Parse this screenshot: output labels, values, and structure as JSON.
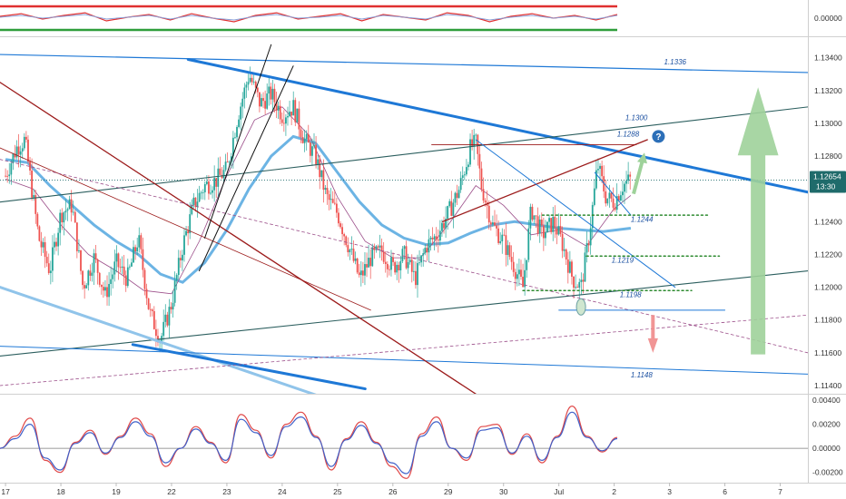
{
  "colors": {
    "background": "#ffffff",
    "candle_up": "#26a69a",
    "candle_down": "#ef5350",
    "ma_fast": "#9c4f8a",
    "ma_slow": "#6cb4e4",
    "channel_blue": "#1e78d6",
    "channel_light": "#90c4ea",
    "trend_red": "#9c1b1b",
    "trend_green": "#2b5e5e",
    "rsi_band_red": "#e03030",
    "rsi_band_green": "#2e9e3a",
    "level_green": "#2e8b30",
    "price_badge": "#1f6b6b",
    "arrow_green": "#9ed29a",
    "arrow_red": "#f08a8a",
    "question_badge": "#2c6fb8"
  },
  "chart_data": [
    {
      "type": "candlestick",
      "panel": "main",
      "price_axis": {
        "ticks": [
          "1.13400",
          "1.13200",
          "1.13000",
          "1.12800",
          "1.12600",
          "1.12400",
          "1.12200",
          "1.12000",
          "1.11800",
          "1.11600",
          "1.11400"
        ],
        "ylim": [
          1.1135,
          1.1352
        ]
      },
      "current_price": {
        "value": "1.12654",
        "timer": "13:30",
        "y": 1.12654
      },
      "x_axis": {
        "ticks": [
          {
            "label": "17",
            "x": 0
          },
          {
            "label": "18",
            "x": 1
          },
          {
            "label": "19",
            "x": 2
          },
          {
            "label": "22",
            "x": 3
          },
          {
            "label": "23",
            "x": 4
          },
          {
            "label": "24",
            "x": 5
          },
          {
            "label": "25",
            "x": 6
          },
          {
            "label": "26",
            "x": 7
          },
          {
            "label": "29",
            "x": 8
          },
          {
            "label": "30",
            "x": 9
          },
          {
            "label": "Jul",
            "x": 10
          },
          {
            "label": "2",
            "x": 11
          },
          {
            "label": "3",
            "x": 12
          },
          {
            "label": "6",
            "x": 13
          },
          {
            "label": "7",
            "x": 14
          }
        ],
        "xlim": [
          -0.1,
          14.5
        ]
      },
      "price_path": [
        [
          0,
          1.1268
        ],
        [
          0.2,
          1.1285
        ],
        [
          0.35,
          1.129
        ],
        [
          0.6,
          1.123
        ],
        [
          0.8,
          1.121
        ],
        [
          1.0,
          1.1245
        ],
        [
          1.2,
          1.125
        ],
        [
          1.4,
          1.12
        ],
        [
          1.6,
          1.1218
        ],
        [
          1.8,
          1.1195
        ],
        [
          2.0,
          1.1215
        ],
        [
          2.2,
          1.1205
        ],
        [
          2.4,
          1.123
        ],
        [
          2.6,
          1.1185
        ],
        [
          2.8,
          1.1168
        ],
        [
          3.0,
          1.119
        ],
        [
          3.2,
          1.1225
        ],
        [
          3.4,
          1.125
        ],
        [
          3.6,
          1.1262
        ],
        [
          3.8,
          1.1265
        ],
        [
          4.0,
          1.1272
        ],
        [
          4.2,
          1.1305
        ],
        [
          4.4,
          1.133
        ],
        [
          4.6,
          1.1312
        ],
        [
          4.8,
          1.1318
        ],
        [
          5.0,
          1.1305
        ],
        [
          5.2,
          1.131
        ],
        [
          5.4,
          1.129
        ],
        [
          5.6,
          1.128
        ],
        [
          5.8,
          1.1255
        ],
        [
          6.0,
          1.1245
        ],
        [
          6.2,
          1.1225
        ],
        [
          6.4,
          1.1205
        ],
        [
          6.6,
          1.1218
        ],
        [
          6.8,
          1.1222
        ],
        [
          7.0,
          1.1212
        ],
        [
          7.2,
          1.122
        ],
        [
          7.4,
          1.1205
        ],
        [
          7.6,
          1.1225
        ],
        [
          7.8,
          1.1232
        ],
        [
          8.0,
          1.1245
        ],
        [
          8.2,
          1.126
        ],
        [
          8.4,
          1.1285
        ],
        [
          8.5,
          1.1288
        ],
        [
          8.6,
          1.1262
        ],
        [
          8.8,
          1.1238
        ],
        [
          9.0,
          1.1228
        ],
        [
          9.2,
          1.1212
        ],
        [
          9.35,
          1.12
        ],
        [
          9.5,
          1.1248
        ],
        [
          9.7,
          1.1232
        ],
        [
          9.9,
          1.124
        ],
        [
          10.05,
          1.1228
        ],
        [
          10.25,
          1.1205
        ],
        [
          10.4,
          1.12
        ],
        [
          10.55,
          1.1232
        ],
        [
          10.7,
          1.1275
        ],
        [
          10.85,
          1.1255
        ],
        [
          11.0,
          1.1252
        ],
        [
          11.15,
          1.1262
        ],
        [
          11.3,
          1.1266
        ]
      ],
      "indicators": {
        "ma_fast_path": [
          [
            0,
            1.1266
          ],
          [
            0.5,
            1.126
          ],
          [
            1.0,
            1.1238
          ],
          [
            1.5,
            1.122
          ],
          [
            2.0,
            1.121
          ],
          [
            2.5,
            1.1198
          ],
          [
            3.0,
            1.1196
          ],
          [
            3.5,
            1.1228
          ],
          [
            4.0,
            1.1268
          ],
          [
            4.5,
            1.1302
          ],
          [
            5.0,
            1.131
          ],
          [
            5.5,
            1.1292
          ],
          [
            6.0,
            1.1255
          ],
          [
            6.5,
            1.1228
          ],
          [
            7.0,
            1.1218
          ],
          [
            7.5,
            1.1218
          ],
          [
            8.0,
            1.1238
          ],
          [
            8.5,
            1.1262
          ],
          [
            9.0,
            1.125
          ],
          [
            9.5,
            1.1232
          ],
          [
            10.0,
            1.1235
          ],
          [
            10.5,
            1.1225
          ],
          [
            11.0,
            1.1248
          ],
          [
            11.3,
            1.1256
          ]
        ],
        "ma_slow_path": [
          [
            0,
            1.1278
          ],
          [
            0.4,
            1.1276
          ],
          [
            0.8,
            1.1262
          ],
          [
            1.2,
            1.125
          ],
          [
            1.6,
            1.1238
          ],
          [
            2.0,
            1.1228
          ],
          [
            2.4,
            1.122
          ],
          [
            2.8,
            1.1208
          ],
          [
            3.2,
            1.1203
          ],
          [
            3.6,
            1.1215
          ],
          [
            4.0,
            1.1235
          ],
          [
            4.4,
            1.126
          ],
          [
            4.8,
            1.128
          ],
          [
            5.2,
            1.1292
          ],
          [
            5.6,
            1.1288
          ],
          [
            6.0,
            1.127
          ],
          [
            6.4,
            1.1252
          ],
          [
            6.8,
            1.1238
          ],
          [
            7.2,
            1.123
          ],
          [
            7.6,
            1.1226
          ],
          [
            8.0,
            1.1227
          ],
          [
            8.4,
            1.1233
          ],
          [
            8.8,
            1.1238
          ],
          [
            9.2,
            1.124
          ],
          [
            9.6,
            1.1238
          ],
          [
            10.0,
            1.1236
          ],
          [
            10.4,
            1.1235
          ],
          [
            10.8,
            1.1234
          ],
          [
            11.3,
            1.1236
          ]
        ]
      },
      "drawings": [
        {
          "kind": "line",
          "color": "channel_blue",
          "width": 1.2,
          "from": [
            -0.1,
            1.1342
          ],
          "to": [
            14.5,
            1.1331
          ]
        },
        {
          "kind": "line",
          "color": "channel_blue",
          "width": 3,
          "from": [
            3.3,
            1.1339
          ],
          "to": [
            14.5,
            1.1258
          ]
        },
        {
          "kind": "line",
          "color": "trend_green",
          "width": 1.1,
          "from": [
            -0.1,
            1.1252
          ],
          "to": [
            14.5,
            1.131
          ]
        },
        {
          "kind": "line",
          "color": "trend_green",
          "width": 1.1,
          "from": [
            -0.1,
            1.1158
          ],
          "to": [
            14.5,
            1.121
          ]
        },
        {
          "kind": "line",
          "color": "channel_light",
          "width": 3,
          "from": [
            -0.1,
            1.12
          ],
          "to": [
            6.5,
            1.1124
          ]
        },
        {
          "kind": "line",
          "color": "channel_blue",
          "width": 3,
          "from": [
            2.3,
            1.1165
          ],
          "to": [
            6.5,
            1.1138
          ]
        },
        {
          "kind": "line",
          "color": "channel_blue",
          "width": 1,
          "from": [
            -0.1,
            1.1164
          ],
          "to": [
            14.5,
            1.1147
          ]
        },
        {
          "kind": "line",
          "color": "trend_red",
          "width": 1.3,
          "from": [
            -0.1,
            1.1325
          ],
          "to": [
            8.9,
            1.1126
          ]
        },
        {
          "kind": "line",
          "color": "trend_red",
          "width": 0.8,
          "from": [
            -0.1,
            1.1285
          ],
          "to": [
            6.6,
            1.1186
          ]
        },
        {
          "kind": "line",
          "color": "trend_red",
          "width": 1.3,
          "from": [
            7.9,
            1.124
          ],
          "to": [
            11.6,
            1.129
          ]
        },
        {
          "kind": "line",
          "color": "trend_red",
          "width": 0.8,
          "from": [
            7.7,
            1.1287
          ],
          "to": [
            11.4,
            1.1287
          ]
        },
        {
          "kind": "dashed",
          "color": "ma_fast",
          "width": 0.8,
          "from": [
            -0.1,
            1.1278
          ],
          "to": [
            14.5,
            1.116
          ]
        },
        {
          "kind": "dashed",
          "color": "ma_fast",
          "width": 0.8,
          "from": [
            -0.1,
            1.114
          ],
          "to": [
            14.5,
            1.1183
          ]
        },
        {
          "kind": "line",
          "color": "#101010",
          "width": 1,
          "from": [
            3.6,
            1.123
          ],
          "to": [
            4.8,
            1.1348
          ]
        },
        {
          "kind": "line",
          "color": "#101010",
          "width": 1,
          "from": [
            3.5,
            1.121
          ],
          "to": [
            5.2,
            1.1335
          ]
        },
        {
          "kind": "line",
          "color": "channel_blue",
          "width": 1,
          "from": [
            8.5,
            1.129
          ],
          "to": [
            12.1,
            1.12
          ]
        },
        {
          "kind": "line",
          "color": "channel_blue",
          "width": 1,
          "from": [
            10.65,
            1.127
          ],
          "to": [
            11.3,
            1.1244
          ]
        },
        {
          "kind": "line",
          "color": "channel_blue",
          "width": 1,
          "from": [
            10.0,
            1.1186
          ],
          "to": [
            13.0,
            1.1186
          ]
        },
        {
          "kind": "dotted",
          "color": "level_green",
          "width": 1.5,
          "from": [
            9.7,
            1.1244
          ],
          "to": [
            12.7,
            1.1244
          ]
        },
        {
          "kind": "dotted",
          "color": "level_green",
          "width": 1.5,
          "from": [
            10.5,
            1.1219
          ],
          "to": [
            12.9,
            1.1219
          ]
        },
        {
          "kind": "dotted",
          "color": "level_green",
          "width": 1.5,
          "from": [
            9.35,
            1.1198
          ],
          "to": [
            12.4,
            1.1198
          ]
        }
      ],
      "annotations": [
        {
          "text": "1.1336",
          "x": 11.9,
          "y": 1.1336
        },
        {
          "text": "1.1300",
          "x": 11.2,
          "y": 1.1302
        },
        {
          "text": "1.1288",
          "x": 11.05,
          "y": 1.1292,
          "muted": true
        },
        {
          "text": "1.1244",
          "x": 11.3,
          "y": 1.124
        },
        {
          "text": "1.1219",
          "x": 10.95,
          "y": 1.1215
        },
        {
          "text": "1.1198",
          "x": 11.1,
          "y": 1.1194
        },
        {
          "text": "1.1148",
          "x": 11.3,
          "y": 1.1145
        }
      ],
      "markers": {
        "question": {
          "text": "?",
          "x": 11.8,
          "y": 1.1292
        },
        "ellipse": {
          "x": 10.4,
          "y": 1.1188
        },
        "big_up_arrow": {
          "x": 13.6,
          "from": 1.1159,
          "to": 1.1322
        },
        "small_up_arrow": {
          "x": 11.35,
          "from": 1.1257,
          "to": 1.1281
        },
        "small_down_arrow": {
          "x": 11.7,
          "from": 1.1183,
          "to": 1.116
        }
      }
    },
    {
      "type": "line",
      "panel": "rsi",
      "ticks": [
        "0.00000"
      ],
      "ylim": [
        -1,
        1
      ],
      "bands": {
        "upper": 0.72,
        "lower": -0.72
      },
      "series": [
        {
          "color": "rsi_band_red",
          "values": [
            0.2,
            0.5,
            -0.1,
            0.3,
            0.6,
            -0.3,
            0.1,
            0.4,
            -0.2,
            0.5,
            0.0,
            -0.4,
            0.3,
            0.6,
            -0.1,
            0.2,
            0.5,
            -0.3,
            0.4,
            0.1,
            -0.2,
            0.6,
            0.3,
            -0.4,
            0.2,
            0.5,
            0.0,
            0.3,
            -0.2,
            0.4
          ]
        },
        {
          "color": "#8aa0d8",
          "values": [
            0.1,
            0.3,
            0.0,
            0.2,
            0.4,
            -0.1,
            0.1,
            0.3,
            -0.1,
            0.3,
            0.0,
            -0.2,
            0.2,
            0.4,
            0.0,
            0.1,
            0.3,
            -0.1,
            0.3,
            0.1,
            -0.1,
            0.4,
            0.2,
            -0.2,
            0.1,
            0.3,
            0.0,
            0.2,
            -0.1,
            0.3
          ]
        }
      ]
    },
    {
      "type": "line",
      "panel": "oscillator",
      "ticks": [
        "0.00400",
        "0.00200",
        "0.00000",
        "-0.00200"
      ],
      "ylim": [
        -0.0027,
        0.0043
      ],
      "zero_line": 0,
      "series": [
        {
          "color": "#e04848",
          "values": [
            0.0,
            0.001,
            0.0025,
            -0.001,
            -0.002,
            0.0005,
            0.0015,
            -0.0005,
            0.001,
            0.0025,
            0.0012,
            -0.0015,
            0.0,
            0.0018,
            0.0005,
            -0.0012,
            0.0028,
            0.0015,
            -0.0008,
            0.002,
            0.003,
            0.001,
            -0.0018,
            0.0008,
            0.0022,
            0.0005,
            -0.0015,
            -0.0025,
            0.0012,
            0.0026,
            0.0,
            -0.001,
            0.0018,
            0.002,
            -0.0005,
            0.0012,
            -0.0012,
            0.001,
            0.0035,
            0.001,
            -0.0003,
            0.0009
          ]
        },
        {
          "color": "#4060c8",
          "values": [
            0.0,
            0.0008,
            0.002,
            -0.0008,
            -0.0018,
            0.0004,
            0.0013,
            -0.0004,
            0.0009,
            0.0022,
            0.001,
            -0.0012,
            0.0,
            0.0016,
            0.0004,
            -0.001,
            0.0024,
            0.0013,
            -0.0006,
            0.0018,
            0.0026,
            0.0009,
            -0.0015,
            0.0007,
            0.0019,
            0.0004,
            -0.0012,
            -0.0021,
            0.001,
            0.0022,
            0.0,
            -0.0008,
            0.0015,
            0.0017,
            -0.0004,
            0.001,
            -0.001,
            0.0009,
            0.003,
            0.0009,
            -0.0002,
            0.0008
          ]
        }
      ]
    }
  ]
}
